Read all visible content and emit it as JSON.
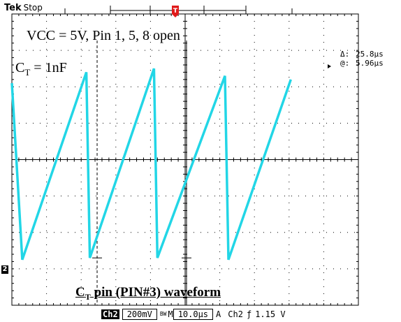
{
  "header": {
    "brand": "Tek",
    "acquisition_state": "Stop",
    "trigger_marker": "T"
  },
  "annotations": {
    "conditions": "VCC = 5V, Pin 1, 5, 8 open",
    "cap_label_main": "C",
    "cap_label_sub": "T",
    "cap_label_value": " = 1nF",
    "caption_main": "C",
    "caption_sub": "T",
    "caption_rest": " pin (PIN#3) waveform"
  },
  "cursor_readout": {
    "delta_label": "Δ:",
    "delta_value": "25.8µs",
    "at_label": "@:",
    "at_value": "5.96µs"
  },
  "channel_marker": "2",
  "status_bar": {
    "channel": "Ch2",
    "volts_per_div": "200mV",
    "bw_mark": "BW",
    "mode": "M",
    "time_per_div": "10.0µs",
    "trigger_mode": "A",
    "trigger_source": "Ch2",
    "trigger_slope": "ƒ",
    "trigger_level": "1.15 V"
  },
  "colors": {
    "trace": "#22d6e6",
    "grid": "#000000",
    "background": "#ffffff"
  },
  "chart_data": {
    "type": "line",
    "description_free": true,
    "x_unit": "µs",
    "y_unit": "div",
    "x_divisions": 10,
    "y_divisions": 8,
    "time_per_div_us": 10.0,
    "volts_per_div_mV": 200,
    "series": [
      {
        "values_xy": [
          [
            0.0,
            6.1
          ],
          [
            3.0,
            1.25
          ],
          [
            21.5,
            6.4
          ],
          [
            22.5,
            1.3
          ],
          [
            41.0,
            6.5
          ],
          [
            42.0,
            1.3
          ],
          [
            61.5,
            6.3
          ],
          [
            62.5,
            1.25
          ],
          [
            80.5,
            6.2
          ]
        ]
      }
    ],
    "cursors_x_us": [
      24.6,
      50.4
    ],
    "cursor_level_div": 1.3
  }
}
